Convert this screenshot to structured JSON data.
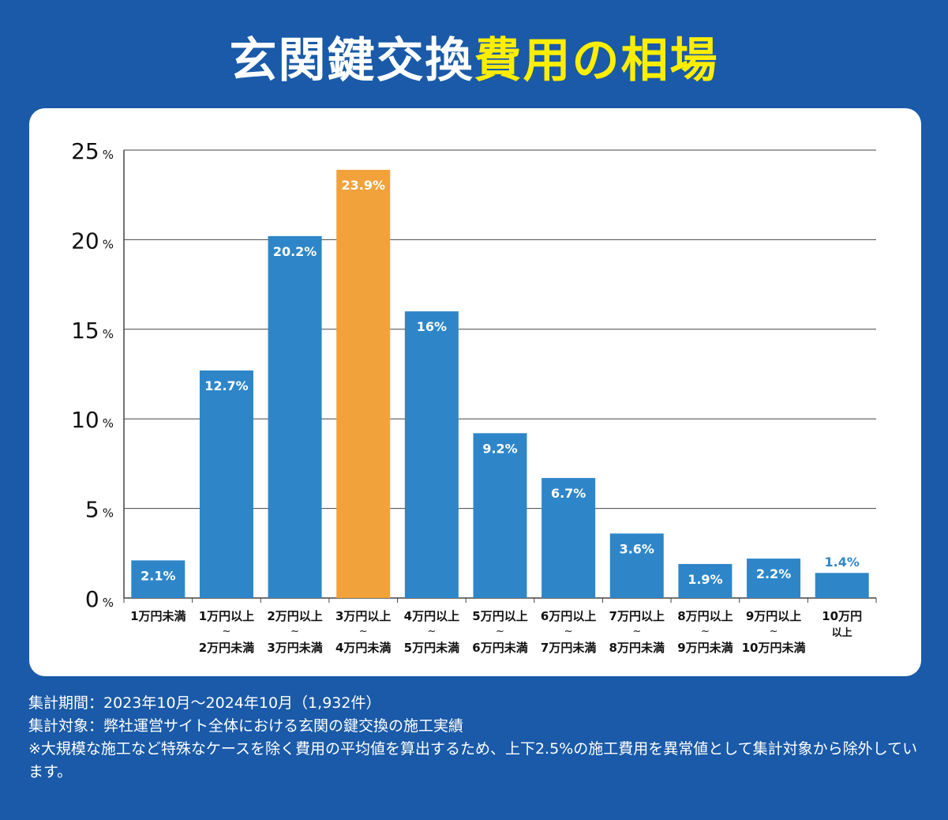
{
  "header": {
    "title_part1": "玄関鍵交換",
    "title_part2": "費用の相場"
  },
  "colors": {
    "background": "#1a5aa8",
    "bar": "#2e86c9",
    "bar_highlight": "#f2a23a",
    "title_highlight": "#ffee00"
  },
  "chart_data": {
    "type": "bar",
    "title": "玄関鍵交換費用の相場",
    "unit": "%",
    "ylim": [
      0,
      25
    ],
    "yticks": [
      0,
      5,
      10,
      15,
      20,
      25
    ],
    "grid": true,
    "highlight_index": 3,
    "categories": [
      {
        "top": "1万円未満",
        "bottom": ""
      },
      {
        "top": "1万円以上",
        "bottom": "2万円未満"
      },
      {
        "top": "2万円以上",
        "bottom": "3万円未満"
      },
      {
        "top": "3万円以上",
        "bottom": "4万円未満"
      },
      {
        "top": "4万円以上",
        "bottom": "5万円未満"
      },
      {
        "top": "5万円以上",
        "bottom": "6万円未満"
      },
      {
        "top": "6万円以上",
        "bottom": "7万円未満"
      },
      {
        "top": "7万円以上",
        "bottom": "8万円未満"
      },
      {
        "top": "8万円以上",
        "bottom": "9万円未満"
      },
      {
        "top": "9万円以上",
        "bottom": "10万円未満"
      },
      {
        "top": "10万円",
        "bottom": "以上"
      }
    ],
    "values": [
      2.1,
      12.7,
      20.2,
      23.9,
      16,
      9.2,
      6.7,
      3.6,
      1.9,
      2.2,
      1.4
    ],
    "value_labels": [
      "2.1%",
      "12.7%",
      "20.2%",
      "23.9%",
      "16%",
      "9.2%",
      "6.7%",
      "3.6%",
      "1.9%",
      "2.2%",
      "1.4%"
    ]
  },
  "notes": {
    "line1": "集計期間：2023年10月～2024年10月（1,932件）",
    "line2": "集計対象：弊社運営サイト全体における玄関の鍵交換の施工実績",
    "line3": "※大規模な施工など特殊なケースを除く費用の平均値を算出するため、上下2.5%の施工費用を異常値として集計対象から除外しています。"
  }
}
